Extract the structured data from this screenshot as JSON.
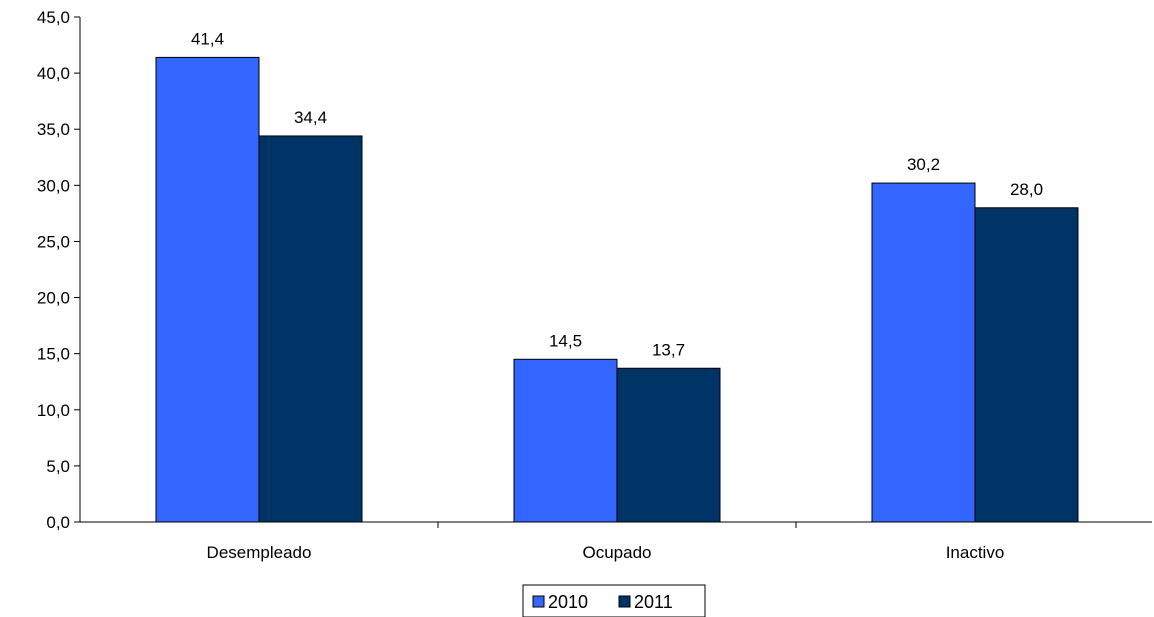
{
  "chart_data": {
    "type": "bar",
    "title": "",
    "xlabel": "",
    "ylabel": "",
    "categories": [
      "Desempleado",
      "Ocupado",
      "Inactivo"
    ],
    "series": [
      {
        "name": "2010",
        "values": [
          41.4,
          14.5,
          30.2
        ],
        "labels": [
          "41,4",
          "14,5",
          "30,2"
        ],
        "color": "#3366FF"
      },
      {
        "name": "2011",
        "values": [
          34.4,
          13.7,
          28.0
        ],
        "labels": [
          "34,4",
          "13,7",
          "28,0"
        ],
        "color": "#003366"
      }
    ],
    "ylim": [
      0,
      45
    ],
    "yticks": [
      0,
      5,
      10,
      15,
      20,
      25,
      30,
      35,
      40,
      45
    ],
    "ytick_labels": [
      "0,0",
      "5,0",
      "10,0",
      "15,0",
      "20,0",
      "25,0",
      "30,0",
      "35,0",
      "40,0",
      "45,0"
    ],
    "grid": false,
    "legend_position": "bottom-center"
  }
}
